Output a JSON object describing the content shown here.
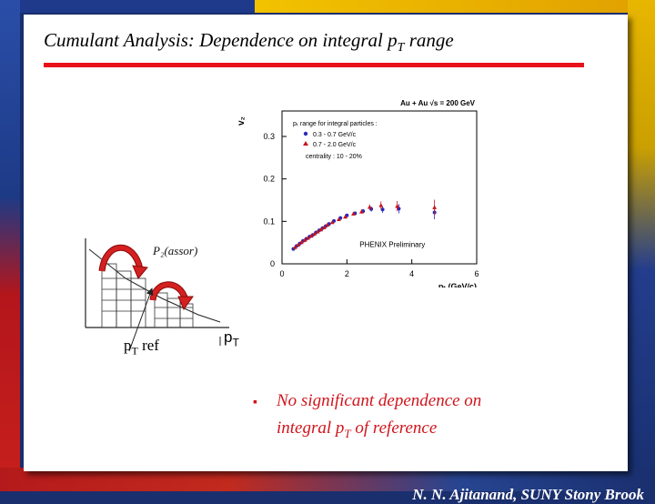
{
  "slide": {
    "title_main": "Cumulant Analysis: Dependence on integral p",
    "title_sub": "T",
    "title_tail": " range",
    "footer": "N. N. Ajitanand, SUNY  Stony Brook",
    "bullet_text_1": "No significant dependence on",
    "bullet_text_2a": "integral p",
    "bullet_text_2sub": "T",
    "bullet_text_2b": " of reference",
    "pt_ref_main": "p",
    "pt_ref_sub": "T",
    "pt_ref_tail": " ref",
    "pt_main": "p",
    "pt_sub": "T",
    "schematic_label": "P₂(assor)",
    "colors": {
      "rule": "#e8121a",
      "bullet": "#d0141c",
      "arrow_fill": "#d42020"
    }
  },
  "chart_data": {
    "type": "scatter",
    "header": "Au + Au  √s = 200 GeV",
    "ylabel": "v₂",
    "xlabel": "pₜ (GeV/c)",
    "legend_title": "pₜ range for integral particles :",
    "centrality": "centrality : 10 - 20%",
    "watermark": "PHENIX Preliminary",
    "xlim": [
      0,
      6
    ],
    "ylim": [
      0,
      0.36
    ],
    "x_ticks": [
      "0",
      "2",
      "4",
      "6"
    ],
    "y_ticks": [
      "0",
      "0.1",
      "0.2",
      "0.3"
    ],
    "legend_position": "top-left",
    "series": [
      {
        "name": "0.3 - 0.7 GeV/c",
        "color": "#2a2ab8",
        "marker": "circle",
        "x": [
          0.35,
          0.45,
          0.55,
          0.65,
          0.75,
          0.85,
          0.95,
          1.05,
          1.15,
          1.25,
          1.35,
          1.45,
          1.6,
          1.8,
          2.0,
          2.25,
          2.5,
          2.75,
          3.1,
          3.6,
          4.7
        ],
        "y": [
          0.035,
          0.042,
          0.048,
          0.054,
          0.059,
          0.064,
          0.068,
          0.074,
          0.079,
          0.084,
          0.089,
          0.094,
          0.101,
          0.108,
          0.114,
          0.119,
          0.124,
          0.129,
          0.128,
          0.13,
          0.121
        ],
        "err": [
          0.002,
          0.002,
          0.002,
          0.002,
          0.002,
          0.002,
          0.002,
          0.002,
          0.002,
          0.002,
          0.002,
          0.003,
          0.003,
          0.003,
          0.004,
          0.004,
          0.005,
          0.006,
          0.008,
          0.011,
          0.016
        ]
      },
      {
        "name": "0.7 - 2.0 GeV/c",
        "color": "#c8141a",
        "marker": "triangle",
        "x": [
          0.4,
          0.5,
          0.6,
          0.7,
          0.8,
          0.9,
          1.0,
          1.1,
          1.2,
          1.3,
          1.4,
          1.55,
          1.75,
          1.95,
          2.2,
          2.45,
          2.7,
          3.05,
          3.55,
          4.7
        ],
        "y": [
          0.039,
          0.045,
          0.051,
          0.056,
          0.061,
          0.066,
          0.071,
          0.076,
          0.081,
          0.086,
          0.092,
          0.098,
          0.105,
          0.111,
          0.118,
          0.123,
          0.134,
          0.138,
          0.136,
          0.133
        ],
        "err": [
          0.002,
          0.002,
          0.002,
          0.002,
          0.002,
          0.002,
          0.002,
          0.002,
          0.002,
          0.002,
          0.003,
          0.003,
          0.003,
          0.004,
          0.004,
          0.005,
          0.006,
          0.009,
          0.012,
          0.018
        ]
      }
    ]
  }
}
